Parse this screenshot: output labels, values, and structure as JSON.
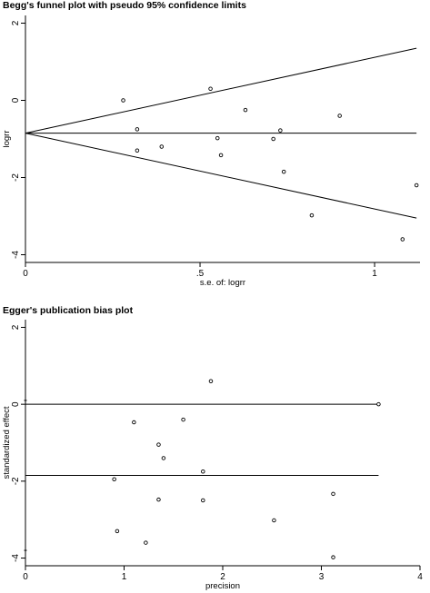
{
  "chart_data": [
    {
      "type": "scatter",
      "title": "Begg's funnel plot with pseudo 95% confidence limits",
      "xlabel": "s.e. of: logrr",
      "ylabel": "logrr",
      "xlim": [
        0,
        1.13
      ],
      "ylim": [
        -4.2,
        2.2
      ],
      "xticks": [
        {
          "v": 0,
          "label": "0"
        },
        {
          "v": 0.5,
          "label": ".5"
        },
        {
          "v": 1,
          "label": "1"
        }
      ],
      "yticks": [
        {
          "v": 2,
          "label": "2"
        },
        {
          "v": 0,
          "label": "0"
        },
        {
          "v": -2,
          "label": "-2"
        },
        {
          "v": -4,
          "label": "-4"
        }
      ],
      "grid": false,
      "points": [
        {
          "x": 0.28,
          "y": 0.0
        },
        {
          "x": 0.32,
          "y": -0.75
        },
        {
          "x": 0.32,
          "y": -1.3
        },
        {
          "x": 0.39,
          "y": -1.2
        },
        {
          "x": 0.53,
          "y": 0.3
        },
        {
          "x": 0.55,
          "y": -0.98
        },
        {
          "x": 0.56,
          "y": -1.42
        },
        {
          "x": 0.63,
          "y": -0.25
        },
        {
          "x": 0.71,
          "y": -1.0
        },
        {
          "x": 0.73,
          "y": -0.78
        },
        {
          "x": 0.74,
          "y": -1.85
        },
        {
          "x": 0.82,
          "y": -2.98
        },
        {
          "x": 0.9,
          "y": -0.4
        },
        {
          "x": 1.08,
          "y": -3.6
        },
        {
          "x": 1.12,
          "y": -2.2
        }
      ],
      "reference_lines": [
        {
          "name": "pooled estimate",
          "from": [
            0,
            -0.85
          ],
          "to": [
            1.12,
            -0.85
          ]
        },
        {
          "name": "upper 95% limit",
          "from": [
            0,
            -0.85
          ],
          "to": [
            1.12,
            1.35
          ]
        },
        {
          "name": "lower 95% limit",
          "from": [
            0,
            -0.85
          ],
          "to": [
            1.12,
            -3.05
          ]
        }
      ]
    },
    {
      "type": "scatter",
      "title": "Egger's publication bias plot",
      "xlabel": "precision",
      "ylabel": "standardized effect",
      "xlim": [
        0,
        4
      ],
      "ylim": [
        -4.2,
        2.2
      ],
      "xticks": [
        {
          "v": 0,
          "label": "0"
        },
        {
          "v": 1,
          "label": "1"
        },
        {
          "v": 2,
          "label": "2"
        },
        {
          "v": 3,
          "label": "3"
        },
        {
          "v": 4,
          "label": "4"
        }
      ],
      "yticks": [
        {
          "v": 2,
          "label": "2"
        },
        {
          "v": 0,
          "label": "0"
        },
        {
          "v": -2,
          "label": "-2"
        },
        {
          "v": -4,
          "label": "-4"
        }
      ],
      "grid": false,
      "points": [
        {
          "x": 0.9,
          "y": -1.95
        },
        {
          "x": 0.93,
          "y": -3.3
        },
        {
          "x": 1.1,
          "y": -0.47
        },
        {
          "x": 1.22,
          "y": -3.6
        },
        {
          "x": 1.35,
          "y": -1.05
        },
        {
          "x": 1.35,
          "y": -2.48
        },
        {
          "x": 1.4,
          "y": -1.4
        },
        {
          "x": 1.6,
          "y": -0.4
        },
        {
          "x": 1.8,
          "y": -1.75
        },
        {
          "x": 1.8,
          "y": -2.5
        },
        {
          "x": 1.88,
          "y": 0.6
        },
        {
          "x": 2.52,
          "y": -3.02
        },
        {
          "x": 3.12,
          "y": -2.33
        },
        {
          "x": 3.12,
          "y": -3.98
        },
        {
          "x": 3.58,
          "y": 0.0
        }
      ],
      "reference_lines": [
        {
          "name": "zero line",
          "from": [
            0,
            0
          ],
          "to": [
            3.58,
            0
          ]
        },
        {
          "name": "regression line",
          "from": [
            0,
            -1.85
          ],
          "to": [
            3.58,
            -1.85
          ]
        }
      ],
      "intercept_ci": {
        "x": 0,
        "low": -3.8,
        "high": 0.1
      }
    }
  ]
}
